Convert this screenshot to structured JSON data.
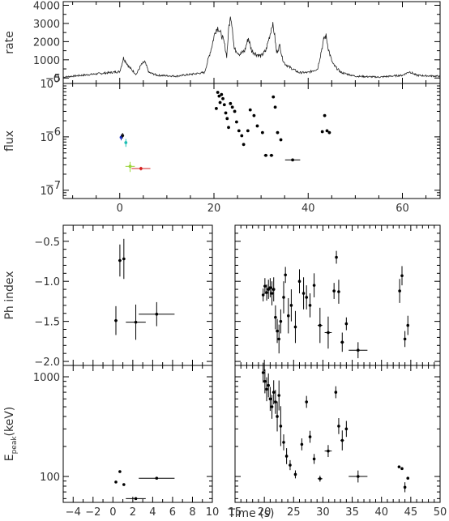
{
  "chart_data": [
    {
      "id": "lightcurve",
      "type": "line",
      "ylabel": "rate",
      "xlim": [
        -12,
        68
      ],
      "ylim": [
        -300,
        4200
      ],
      "yticks": [
        0,
        1000,
        2000,
        3000,
        4000
      ],
      "tick_labels_y": [
        "0",
        "1000",
        "2000",
        "3000",
        "4000"
      ],
      "color": "#222222",
      "x": [
        -12,
        0,
        0.8,
        2,
        3.5,
        4.5,
        5.3,
        6.2,
        8,
        12,
        18,
        19.5,
        20.3,
        20.9,
        21.3,
        21.7,
        22.2,
        22.7,
        23.2,
        23.6,
        23.9,
        24.3,
        24.8,
        25.5,
        26.5,
        27.3,
        28,
        29,
        30,
        31,
        32,
        32.4,
        32.8,
        33.3,
        34,
        34.5,
        35,
        36,
        38,
        40,
        42,
        42.8,
        43.4,
        43.8,
        44.3,
        44.7,
        45.2,
        45.8,
        47,
        50,
        55,
        60,
        61.5,
        63,
        65,
        68
      ],
      "y": [
        50,
        350,
        1100,
        600,
        200,
        700,
        900,
        300,
        150,
        100,
        300,
        1700,
        2600,
        2800,
        2500,
        2300,
        1900,
        1200,
        2900,
        3400,
        2800,
        1600,
        1500,
        1300,
        1500,
        2200,
        1500,
        1300,
        1200,
        1500,
        2500,
        3000,
        2500,
        1400,
        1800,
        1100,
        800,
        600,
        300,
        300,
        500,
        1500,
        2200,
        2300,
        1600,
        1200,
        800,
        600,
        300,
        100,
        50,
        150,
        350,
        150,
        120,
        100
      ]
    },
    {
      "id": "flux",
      "type": "scatter",
      "ylabel": "flux",
      "yscale": "log",
      "xlim": [
        -12,
        68
      ],
      "ylim": [
        7e-08,
        1e-05
      ],
      "xticks": [
        0,
        20,
        40,
        60
      ],
      "tick_labels_x": [
        "0",
        "20",
        "40",
        "60"
      ],
      "ytick_labels": [
        {
          "value": 1e-07,
          "base": "10",
          "exp": "−7"
        },
        {
          "value": 1e-06,
          "base": "10",
          "exp": "−6"
        },
        {
          "value": 1e-05,
          "base": "10",
          "exp": "−5"
        }
      ],
      "points": [
        {
          "x": 0.3,
          "y": 9.8e-07,
          "xerr": 0.2,
          "yerr_lo": 1.2e-07,
          "yerr_hi": 1.2e-07,
          "color": "#1a2fc8"
        },
        {
          "x": 0.6,
          "y": 1.06e-06,
          "xerr": 0.2,
          "yerr_lo": 1.2e-07,
          "yerr_hi": 1.2e-07,
          "color": "#111111"
        },
        {
          "x": 1.3,
          "y": 7.8e-07,
          "xerr": 0.25,
          "yerr_lo": 1.3e-07,
          "yerr_hi": 1.3e-07,
          "color": "#1fbfb4"
        },
        {
          "x": 2.2,
          "y": 2.8e-07,
          "xerr": 1.0,
          "yerr_lo": 6e-08,
          "yerr_hi": 6e-08,
          "color": "#9ad43a"
        },
        {
          "x": 4.5,
          "y": 2.55e-07,
          "xerr": 2.0,
          "yerr_lo": 2e-08,
          "yerr_hi": 2e-08,
          "color": "#d42020"
        },
        {
          "x": 20.5,
          "y": 3.4e-06,
          "xerr": 0,
          "yerr_lo": 0,
          "yerr_hi": 0,
          "color": "#000000"
        },
        {
          "x": 20.8,
          "y": 6.8e-06,
          "xerr": 0,
          "yerr_lo": 0,
          "yerr_hi": 0,
          "color": "#000000"
        },
        {
          "x": 21.1,
          "y": 5.8e-06,
          "xerr": 0,
          "yerr_lo": 0,
          "yerr_hi": 0,
          "color": "#000000"
        },
        {
          "x": 21.3,
          "y": 4.4e-06,
          "xerr": 0,
          "yerr_lo": 0,
          "yerr_hi": 0,
          "color": "#000000"
        },
        {
          "x": 21.6,
          "y": 6.2e-06,
          "xerr": 0,
          "yerr_lo": 0,
          "yerr_hi": 0,
          "color": "#000000"
        },
        {
          "x": 21.9,
          "y": 5.2e-06,
          "xerr": 0,
          "yerr_lo": 0,
          "yerr_hi": 0,
          "color": "#000000"
        },
        {
          "x": 22.2,
          "y": 4e-06,
          "xerr": 0,
          "yerr_lo": 0,
          "yerr_hi": 0,
          "color": "#000000"
        },
        {
          "x": 22.5,
          "y": 2.8e-06,
          "xerr": 0,
          "yerr_lo": 0,
          "yerr_hi": 0,
          "color": "#000000"
        },
        {
          "x": 22.8,
          "y": 2.2e-06,
          "xerr": 0,
          "yerr_lo": 0,
          "yerr_hi": 0,
          "color": "#000000"
        },
        {
          "x": 23.1,
          "y": 1.5e-06,
          "xerr": 0,
          "yerr_lo": 0,
          "yerr_hi": 0,
          "color": "#000000"
        },
        {
          "x": 23.5,
          "y": 4.2e-06,
          "xerr": 0,
          "yerr_lo": 0,
          "yerr_hi": 0,
          "color": "#000000"
        },
        {
          "x": 23.9,
          "y": 3.6e-06,
          "xerr": 0,
          "yerr_lo": 0,
          "yerr_hi": 0,
          "color": "#000000"
        },
        {
          "x": 24.4,
          "y": 3e-06,
          "xerr": 0,
          "yerr_lo": 0,
          "yerr_hi": 0,
          "color": "#000000"
        },
        {
          "x": 24.8,
          "y": 1.9e-06,
          "xerr": 0,
          "yerr_lo": 0,
          "yerr_hi": 0,
          "color": "#000000"
        },
        {
          "x": 25.3,
          "y": 1.3e-06,
          "xerr": 0,
          "yerr_lo": 0,
          "yerr_hi": 0,
          "color": "#000000"
        },
        {
          "x": 25.9,
          "y": 1.05e-06,
          "xerr": 0,
          "yerr_lo": 0,
          "yerr_hi": 0,
          "color": "#000000"
        },
        {
          "x": 26.3,
          "y": 7.2e-07,
          "xerr": 0,
          "yerr_lo": 0,
          "yerr_hi": 0,
          "color": "#000000"
        },
        {
          "x": 27.2,
          "y": 1.3e-06,
          "xerr": 0,
          "yerr_lo": 0,
          "yerr_hi": 0,
          "color": "#000000"
        },
        {
          "x": 27.7,
          "y": 3.2e-06,
          "xerr": 0,
          "yerr_lo": 0,
          "yerr_hi": 0,
          "color": "#000000"
        },
        {
          "x": 28.5,
          "y": 2.5e-06,
          "xerr": 0,
          "yerr_lo": 0,
          "yerr_hi": 0,
          "color": "#000000"
        },
        {
          "x": 29.2,
          "y": 1.6e-06,
          "xerr": 0,
          "yerr_lo": 0,
          "yerr_hi": 0,
          "color": "#000000"
        },
        {
          "x": 30.3,
          "y": 1.2e-06,
          "xerr": 0,
          "yerr_lo": 0,
          "yerr_hi": 0,
          "color": "#000000"
        },
        {
          "x": 31.0,
          "y": 4.5e-07,
          "xerr": 0.4,
          "yerr_lo": 0,
          "yerr_hi": 0,
          "color": "#000000"
        },
        {
          "x": 32.2,
          "y": 4.5e-07,
          "xerr": 0.4,
          "yerr_lo": 0,
          "yerr_hi": 0,
          "color": "#000000"
        },
        {
          "x": 32.6,
          "y": 5.6e-06,
          "xerr": 0,
          "yerr_lo": 0,
          "yerr_hi": 0,
          "color": "#000000"
        },
        {
          "x": 33.0,
          "y": 3.6e-06,
          "xerr": 0,
          "yerr_lo": 0,
          "yerr_hi": 0,
          "color": "#000000"
        },
        {
          "x": 33.5,
          "y": 1.2e-06,
          "xerr": 0,
          "yerr_lo": 0,
          "yerr_hi": 0,
          "color": "#000000"
        },
        {
          "x": 34.2,
          "y": 8.8e-07,
          "xerr": 0,
          "yerr_lo": 0,
          "yerr_hi": 0,
          "color": "#000000"
        },
        {
          "x": 36.7,
          "y": 3.7e-07,
          "xerr": 1.6,
          "yerr_lo": 0,
          "yerr_hi": 0,
          "color": "#000000"
        },
        {
          "x": 43.0,
          "y": 1.25e-06,
          "xerr": 0,
          "yerr_lo": 0,
          "yerr_hi": 0,
          "color": "#000000"
        },
        {
          "x": 43.5,
          "y": 2.5e-06,
          "xerr": 0,
          "yerr_lo": 0,
          "yerr_hi": 0,
          "color": "#000000"
        },
        {
          "x": 44.0,
          "y": 1.3e-06,
          "xerr": 0,
          "yerr_lo": 0,
          "yerr_hi": 0,
          "color": "#000000"
        },
        {
          "x": 44.5,
          "y": 1.2e-06,
          "xerr": 0,
          "yerr_lo": 0,
          "yerr_hi": 0,
          "color": "#000000"
        }
      ]
    },
    {
      "id": "phindex-left",
      "type": "scatter",
      "ylabel": "Ph index",
      "xlim": [
        -5,
        10
      ],
      "ylim": [
        -2.05,
        -0.3
      ],
      "yticks": [
        -0.5,
        -1.0,
        -1.5,
        -2.0
      ],
      "tick_labels_y": [
        "−0.5",
        "−1.0",
        "−1.5",
        "−2.0"
      ],
      "points": [
        {
          "x": 0.3,
          "y": -1.49,
          "xerr": 0.15,
          "yerr": 0.18
        },
        {
          "x": 0.7,
          "y": -0.74,
          "xerr": 0.15,
          "yerr": 0.2
        },
        {
          "x": 1.1,
          "y": -0.72,
          "xerr": 0.15,
          "yerr": 0.25
        },
        {
          "x": 2.3,
          "y": -1.51,
          "xerr": 1.0,
          "yerr": 0.22
        },
        {
          "x": 4.4,
          "y": -1.41,
          "xerr": 1.8,
          "yerr": 0.15
        }
      ]
    },
    {
      "id": "phindex-right",
      "type": "scatter",
      "xlim": [
        15,
        50
      ],
      "ylim": [
        -2.05,
        -0.3
      ],
      "points": [
        {
          "x": 19.8,
          "y": -1.17,
          "xerr": 0.1,
          "yerr": 0.08
        },
        {
          "x": 20.1,
          "y": -1.06,
          "xerr": 0.1,
          "yerr": 0.1
        },
        {
          "x": 20.4,
          "y": -1.14,
          "xerr": 0.1,
          "yerr": 0.1
        },
        {
          "x": 20.7,
          "y": -1.1,
          "xerr": 0.1,
          "yerr": 0.12
        },
        {
          "x": 21.0,
          "y": -1.08,
          "xerr": 0.1,
          "yerr": 0.12
        },
        {
          "x": 21.3,
          "y": -1.15,
          "xerr": 0.1,
          "yerr": 0.15
        },
        {
          "x": 21.6,
          "y": -1.1,
          "xerr": 0.1,
          "yerr": 0.15
        },
        {
          "x": 21.9,
          "y": -1.45,
          "xerr": 0.1,
          "yerr": 0.15
        },
        {
          "x": 22.2,
          "y": -1.62,
          "xerr": 0.1,
          "yerr": 0.15
        },
        {
          "x": 22.5,
          "y": -1.72,
          "xerr": 0.1,
          "yerr": 0.18
        },
        {
          "x": 22.8,
          "y": -1.5,
          "xerr": 0.1,
          "yerr": 0.15
        },
        {
          "x": 23.3,
          "y": -1.2,
          "xerr": 0.15,
          "yerr": 0.2
        },
        {
          "x": 23.6,
          "y": -0.92,
          "xerr": 0.15,
          "yerr": 0.1
        },
        {
          "x": 24.1,
          "y": -1.43,
          "xerr": 0.15,
          "yerr": 0.22
        },
        {
          "x": 24.6,
          "y": -1.3,
          "xerr": 0.15,
          "yerr": 0.2
        },
        {
          "x": 25.3,
          "y": -1.57,
          "xerr": 0.2,
          "yerr": 0.2
        },
        {
          "x": 26.0,
          "y": -1.0,
          "xerr": 0.2,
          "yerr": 0.15
        },
        {
          "x": 26.7,
          "y": -1.15,
          "xerr": 0.2,
          "yerr": 0.2
        },
        {
          "x": 27.2,
          "y": -1.2,
          "xerr": 0.2,
          "yerr": 0.15
        },
        {
          "x": 27.8,
          "y": -1.3,
          "xerr": 0.2,
          "yerr": 0.15
        },
        {
          "x": 28.5,
          "y": -1.05,
          "xerr": 0.2,
          "yerr": 0.15
        },
        {
          "x": 29.5,
          "y": -1.55,
          "xerr": 0.4,
          "yerr": 0.22
        },
        {
          "x": 30.9,
          "y": -1.64,
          "xerr": 0.6,
          "yerr": 0.2
        },
        {
          "x": 31.9,
          "y": -1.12,
          "xerr": 0.2,
          "yerr": 0.1
        },
        {
          "x": 32.3,
          "y": -0.7,
          "xerr": 0.15,
          "yerr": 0.08
        },
        {
          "x": 32.7,
          "y": -1.13,
          "xerr": 0.2,
          "yerr": 0.15
        },
        {
          "x": 33.3,
          "y": -1.76,
          "xerr": 0.3,
          "yerr": 0.12
        },
        {
          "x": 34.0,
          "y": -1.53,
          "xerr": 0.2,
          "yerr": 0.08
        },
        {
          "x": 36.0,
          "y": -1.86,
          "xerr": 1.6,
          "yerr": 0.1
        },
        {
          "x": 43.1,
          "y": -1.12,
          "xerr": 0.15,
          "yerr": 0.15
        },
        {
          "x": 43.5,
          "y": -0.93,
          "xerr": 0.15,
          "yerr": 0.12
        },
        {
          "x": 44.0,
          "y": -1.72,
          "xerr": 0.15,
          "yerr": 0.1
        },
        {
          "x": 44.5,
          "y": -1.55,
          "xerr": 0.15,
          "yerr": 0.12
        }
      ]
    },
    {
      "id": "epeak-left",
      "type": "scatter",
      "ylabel_main": "E",
      "ylabel_sub": "peak",
      "ylabel_tail": "(keV)",
      "yscale": "log",
      "xlim": [
        -5,
        10
      ],
      "ylim": [
        55,
        1300
      ],
      "yticks": [
        100,
        1000
      ],
      "tick_labels_y": [
        "100",
        "1000"
      ],
      "xticks": [
        -4,
        -2,
        0,
        2,
        4,
        6,
        8,
        10
      ],
      "tick_labels_x": [
        "−4",
        "−2",
        "0",
        "2",
        "4",
        "6",
        "8",
        "10"
      ],
      "xlabel": "Time (s)",
      "points": [
        {
          "x": 0.3,
          "y": 88,
          "xerr": 0.1,
          "yerr": 0
        },
        {
          "x": 0.7,
          "y": 112,
          "xerr": 0.1,
          "yerr": 0
        },
        {
          "x": 1.1,
          "y": 83,
          "xerr": 0.1,
          "yerr": 0
        },
        {
          "x": 2.3,
          "y": 60,
          "xerr": 1.0,
          "yerr": 0
        },
        {
          "x": 4.4,
          "y": 96,
          "xerr": 1.8,
          "yerr": 0
        }
      ]
    },
    {
      "id": "epeak-right",
      "type": "scatter",
      "yscale": "log",
      "xlim": [
        15,
        50
      ],
      "ylim": [
        55,
        1300
      ],
      "xticks": [
        15,
        20,
        25,
        30,
        35,
        40,
        45,
        50
      ],
      "tick_labels_x": [
        "15",
        "20",
        "25",
        "30",
        "35",
        "40",
        "45",
        "50"
      ],
      "points": [
        {
          "x": 19.8,
          "y": 1100,
          "xerr": 0.1,
          "yerr": 0.1
        },
        {
          "x": 20.1,
          "y": 900,
          "xerr": 0.1,
          "yerr": 0.12
        },
        {
          "x": 20.4,
          "y": 750,
          "xerr": 0.1,
          "yerr": 0.12
        },
        {
          "x": 20.7,
          "y": 820,
          "xerr": 0.1,
          "yerr": 0.12
        },
        {
          "x": 21.0,
          "y": 600,
          "xerr": 0.1,
          "yerr": 0.12
        },
        {
          "x": 21.3,
          "y": 500,
          "xerr": 0.1,
          "yerr": 0.12
        },
        {
          "x": 21.6,
          "y": 700,
          "xerr": 0.1,
          "yerr": 0.12
        },
        {
          "x": 21.9,
          "y": 560,
          "xerr": 0.1,
          "yerr": 0.12
        },
        {
          "x": 22.2,
          "y": 400,
          "xerr": 0.1,
          "yerr": 0.15
        },
        {
          "x": 22.5,
          "y": 650,
          "xerr": 0.1,
          "yerr": 0.15
        },
        {
          "x": 22.8,
          "y": 320,
          "xerr": 0.1,
          "yerr": 0.2
        },
        {
          "x": 23.3,
          "y": 220,
          "xerr": 0.15,
          "yerr": 0.08
        },
        {
          "x": 23.8,
          "y": 160,
          "xerr": 0.15,
          "yerr": 0.08
        },
        {
          "x": 24.4,
          "y": 130,
          "xerr": 0.15,
          "yerr": 0.05
        },
        {
          "x": 25.3,
          "y": 105,
          "xerr": 0.2,
          "yerr": 0.04
        },
        {
          "x": 26.4,
          "y": 210,
          "xerr": 0.2,
          "yerr": 0.06
        },
        {
          "x": 27.2,
          "y": 560,
          "xerr": 0.2,
          "yerr": 0.06
        },
        {
          "x": 27.8,
          "y": 250,
          "xerr": 0.2,
          "yerr": 0.06
        },
        {
          "x": 28.5,
          "y": 150,
          "xerr": 0.2,
          "yerr": 0.05
        },
        {
          "x": 29.5,
          "y": 95,
          "xerr": 0.4,
          "yerr": 0.03
        },
        {
          "x": 30.9,
          "y": 180,
          "xerr": 0.6,
          "yerr": 0.06
        },
        {
          "x": 32.2,
          "y": 700,
          "xerr": 0.2,
          "yerr": 0.06
        },
        {
          "x": 32.7,
          "y": 320,
          "xerr": 0.2,
          "yerr": 0.08
        },
        {
          "x": 33.3,
          "y": 230,
          "xerr": 0.3,
          "yerr": 0.1
        },
        {
          "x": 34.0,
          "y": 300,
          "xerr": 0.2,
          "yerr": 0.08
        },
        {
          "x": 36.0,
          "y": 100,
          "xerr": 1.6,
          "yerr": 0.06
        },
        {
          "x": 43.0,
          "y": 125,
          "xerr": 0.15,
          "yerr": 0
        },
        {
          "x": 43.5,
          "y": 120,
          "xerr": 0.15,
          "yerr": 0
        },
        {
          "x": 44.0,
          "y": 78,
          "xerr": 0.15,
          "yerr": 0.05
        },
        {
          "x": 44.5,
          "y": 96,
          "xerr": 0.15,
          "yerr": 0
        }
      ]
    }
  ]
}
